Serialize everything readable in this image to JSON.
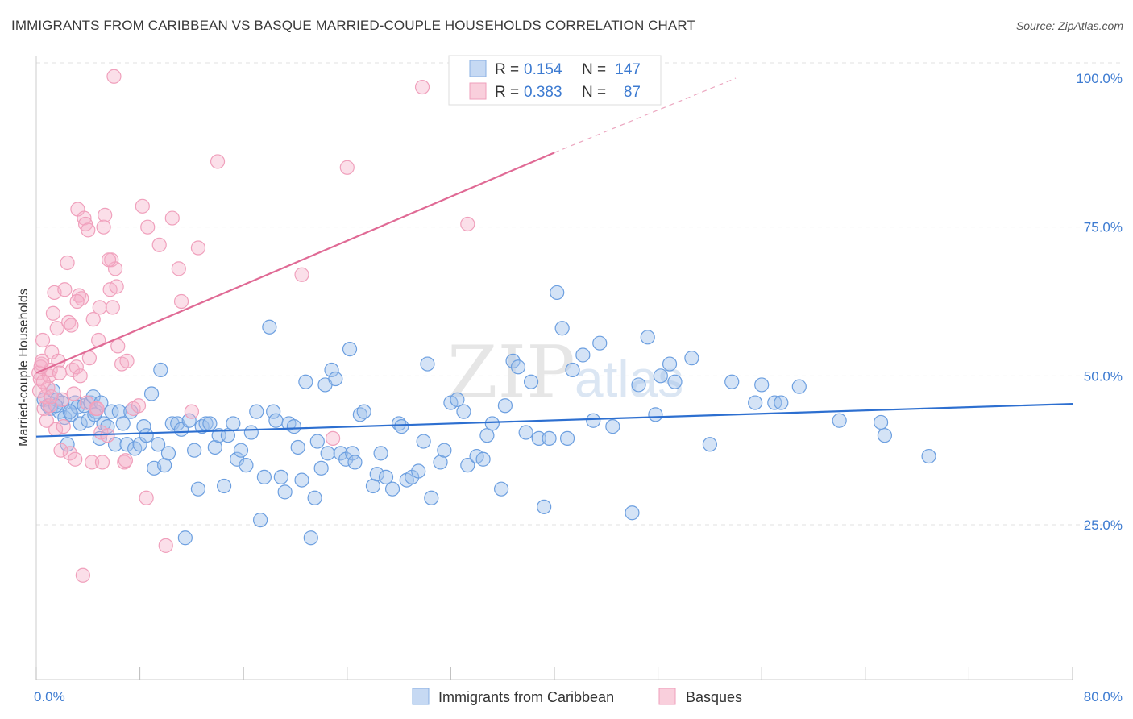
{
  "title": "IMMIGRANTS FROM CARIBBEAN VS BASQUE MARRIED-COUPLE HOUSEHOLDS CORRELATION CHART",
  "source": "Source: ZipAtlas.com",
  "watermark": {
    "zip": "ZIP",
    "atlas": "atlas"
  },
  "colors": {
    "blue": "#6c9fe0",
    "blue_line": "#2d6fd0",
    "pink": "#f0a0bc",
    "pink_line": "#e06a95",
    "accent_text": "#3d7bd1"
  },
  "legend": {
    "r_label": "R =",
    "n_label": "N =",
    "series": [
      {
        "name": "Immigrants from Caribbean",
        "r": "0.154",
        "n": "147"
      },
      {
        "name": "Basques",
        "r": "0.383",
        "n": "87"
      }
    ]
  },
  "chart_data": {
    "type": "scatter",
    "title": "IMMIGRANTS FROM CARIBBEAN VS BASQUE MARRIED-COUPLE HOUSEHOLDS CORRELATION CHART",
    "xlabel": "",
    "ylabel": "Married-couple Households",
    "xlim": [
      0,
      80
    ],
    "ylim": [
      0,
      105
    ],
    "x_tick_labels": [
      "0.0%",
      "80.0%"
    ],
    "y_tick_labels": [
      "25.0%",
      "50.0%",
      "75.0%",
      "100.0%"
    ],
    "y_ticks": [
      25,
      50,
      75,
      100
    ],
    "series": [
      {
        "name": "Immigrants from Caribbean",
        "color": "#6c9fe0",
        "trend": {
          "x0": 0,
          "y0": 39.8,
          "x1": 80,
          "y1": 45.3,
          "dashed_from": null
        },
        "points": [
          [
            0.6,
            46
          ],
          [
            0.9,
            45
          ],
          [
            1.1,
            44.5
          ],
          [
            1.3,
            47.5
          ],
          [
            1.6,
            46
          ],
          [
            1.8,
            44
          ],
          [
            2.0,
            45.5
          ],
          [
            2.2,
            43
          ],
          [
            2.4,
            38.5
          ],
          [
            2.7,
            43.5
          ],
          [
            3.0,
            45.5
          ],
          [
            3.2,
            44.8
          ],
          [
            3.4,
            42
          ],
          [
            3.7,
            45
          ],
          [
            4.0,
            42.5
          ],
          [
            4.2,
            45.5
          ],
          [
            4.4,
            46.5
          ],
          [
            4.6,
            44
          ],
          [
            4.9,
            39.5
          ],
          [
            5.2,
            42
          ],
          [
            5.5,
            41.5
          ],
          [
            5.8,
            44
          ],
          [
            6.1,
            38.5
          ],
          [
            6.4,
            44
          ],
          [
            6.7,
            42
          ],
          [
            7.0,
            38.5
          ],
          [
            7.3,
            44
          ],
          [
            7.6,
            37.8
          ],
          [
            8.0,
            38.5
          ],
          [
            8.3,
            41.5
          ],
          [
            8.5,
            40
          ],
          [
            8.9,
            47
          ],
          [
            9.1,
            34.5
          ],
          [
            9.4,
            38.5
          ],
          [
            9.6,
            51
          ],
          [
            9.9,
            35
          ],
          [
            10.2,
            37
          ],
          [
            10.5,
            42
          ],
          [
            10.9,
            42
          ],
          [
            11.2,
            41
          ],
          [
            11.5,
            22.8
          ],
          [
            11.8,
            42.5
          ],
          [
            12.2,
            37.5
          ],
          [
            12.5,
            31
          ],
          [
            12.8,
            41.5
          ],
          [
            13.1,
            42
          ],
          [
            13.4,
            42
          ],
          [
            13.8,
            38
          ],
          [
            14.1,
            40
          ],
          [
            14.5,
            31.5
          ],
          [
            14.8,
            40
          ],
          [
            15.2,
            42
          ],
          [
            15.5,
            36
          ],
          [
            15.8,
            37.5
          ],
          [
            16.2,
            35
          ],
          [
            16.6,
            40.5
          ],
          [
            17.0,
            44
          ],
          [
            17.3,
            25.8
          ],
          [
            17.6,
            33
          ],
          [
            18.0,
            58.2
          ],
          [
            18.3,
            44
          ],
          [
            18.5,
            42.5
          ],
          [
            18.9,
            33
          ],
          [
            19.2,
            30.5
          ],
          [
            19.5,
            42
          ],
          [
            19.9,
            41.5
          ],
          [
            20.2,
            38
          ],
          [
            20.5,
            32.5
          ],
          [
            20.8,
            49
          ],
          [
            21.2,
            22.8
          ],
          [
            21.5,
            29.5
          ],
          [
            21.7,
            39
          ],
          [
            22.0,
            34.5
          ],
          [
            22.3,
            48.5
          ],
          [
            22.5,
            37
          ],
          [
            22.8,
            51
          ],
          [
            23.1,
            49.5
          ],
          [
            23.5,
            37
          ],
          [
            23.9,
            36
          ],
          [
            24.2,
            54.5
          ],
          [
            24.4,
            37
          ],
          [
            24.6,
            35.5
          ],
          [
            25.0,
            43.5
          ],
          [
            25.3,
            44
          ],
          [
            26.0,
            31.5
          ],
          [
            26.3,
            33.5
          ],
          [
            26.6,
            37
          ],
          [
            27.0,
            33
          ],
          [
            27.5,
            31
          ],
          [
            28.0,
            42
          ],
          [
            28.2,
            41.5
          ],
          [
            28.6,
            32.5
          ],
          [
            29.0,
            33
          ],
          [
            29.5,
            34
          ],
          [
            29.9,
            39
          ],
          [
            30.2,
            52
          ],
          [
            30.5,
            29.5
          ],
          [
            31.2,
            35.5
          ],
          [
            31.5,
            37.5
          ],
          [
            32.0,
            45.5
          ],
          [
            32.5,
            46
          ],
          [
            33.0,
            44
          ],
          [
            33.3,
            35
          ],
          [
            34.0,
            36.5
          ],
          [
            34.5,
            36
          ],
          [
            34.8,
            40
          ],
          [
            35.2,
            42
          ],
          [
            35.9,
            31
          ],
          [
            36.2,
            45
          ],
          [
            36.8,
            52.5
          ],
          [
            37.2,
            51.5
          ],
          [
            37.8,
            40.5
          ],
          [
            38.2,
            49
          ],
          [
            38.8,
            39.5
          ],
          [
            39.2,
            28
          ],
          [
            39.6,
            39.5
          ],
          [
            40.2,
            64
          ],
          [
            40.6,
            58
          ],
          [
            41.0,
            39.5
          ],
          [
            41.4,
            51
          ],
          [
            42.2,
            53.5
          ],
          [
            43.0,
            42.5
          ],
          [
            43.5,
            55.5
          ],
          [
            44.5,
            41.5
          ],
          [
            46.0,
            27
          ],
          [
            46.5,
            48.5
          ],
          [
            47.2,
            56.5
          ],
          [
            47.8,
            43.5
          ],
          [
            48.2,
            50
          ],
          [
            48.9,
            52
          ],
          [
            49.3,
            49
          ],
          [
            50.6,
            53
          ],
          [
            52.0,
            38.5
          ],
          [
            53.7,
            49
          ],
          [
            55.5,
            45.5
          ],
          [
            56.0,
            48.5
          ],
          [
            57.0,
            45.5
          ],
          [
            57.5,
            45.5
          ],
          [
            58.9,
            48.2
          ],
          [
            62.0,
            42.5
          ],
          [
            65.2,
            42.2
          ],
          [
            65.5,
            40
          ],
          [
            68.9,
            36.5
          ],
          [
            1.5,
            45
          ],
          [
            2.6,
            44
          ],
          [
            5.0,
            45.5
          ],
          [
            4.5,
            43.5
          ]
        ]
      },
      {
        "name": "Basques",
        "color": "#f0a0bc",
        "trend": {
          "x0": 0,
          "y0": 50.5,
          "x1": 40,
          "y1": 87.5,
          "dashed_to_x": 54,
          "dashed_to_y": 100
        },
        "points": [
          [
            0.2,
            50.5
          ],
          [
            0.3,
            49.5
          ],
          [
            0.4,
            52
          ],
          [
            0.5,
            56
          ],
          [
            0.6,
            44.5
          ],
          [
            0.7,
            46.5
          ],
          [
            0.8,
            42.5
          ],
          [
            0.9,
            48
          ],
          [
            1.0,
            50
          ],
          [
            1.1,
            51
          ],
          [
            1.2,
            54
          ],
          [
            1.3,
            60.5
          ],
          [
            1.4,
            64
          ],
          [
            1.5,
            41
          ],
          [
            1.6,
            58
          ],
          [
            1.7,
            52.5
          ],
          [
            1.8,
            50.5
          ],
          [
            2.0,
            46
          ],
          [
            2.2,
            64.5
          ],
          [
            2.4,
            69
          ],
          [
            2.5,
            59
          ],
          [
            2.6,
            37
          ],
          [
            2.7,
            58.5
          ],
          [
            2.8,
            51
          ],
          [
            2.9,
            47
          ],
          [
            3.0,
            36
          ],
          [
            3.1,
            51.5
          ],
          [
            3.2,
            78
          ],
          [
            3.3,
            63.5
          ],
          [
            3.4,
            50
          ],
          [
            3.5,
            63
          ],
          [
            3.6,
            16.5
          ],
          [
            3.7,
            76.5
          ],
          [
            3.8,
            75.5
          ],
          [
            3.9,
            45.5
          ],
          [
            4.0,
            74.5
          ],
          [
            4.1,
            53
          ],
          [
            4.3,
            35.5
          ],
          [
            4.4,
            59.5
          ],
          [
            4.6,
            44.5
          ],
          [
            4.8,
            56
          ],
          [
            4.9,
            61.5
          ],
          [
            5.0,
            40.5
          ],
          [
            5.1,
            35.5
          ],
          [
            5.2,
            75
          ],
          [
            5.3,
            77
          ],
          [
            5.5,
            40
          ],
          [
            5.7,
            64.5
          ],
          [
            5.8,
            69.5
          ],
          [
            5.9,
            61.5
          ],
          [
            6.0,
            100.3
          ],
          [
            6.1,
            68
          ],
          [
            6.3,
            55
          ],
          [
            6.6,
            52
          ],
          [
            6.8,
            35.5
          ],
          [
            7.0,
            52.5
          ],
          [
            7.5,
            44.5
          ],
          [
            7.9,
            45
          ],
          [
            8.2,
            78.5
          ],
          [
            8.5,
            29.5
          ],
          [
            8.6,
            75
          ],
          [
            9.5,
            72
          ],
          [
            10.0,
            21.5
          ],
          [
            10.5,
            76.5
          ],
          [
            11.0,
            68
          ],
          [
            11.2,
            62.5
          ],
          [
            12.0,
            44
          ],
          [
            12.5,
            71.5
          ],
          [
            14.0,
            86
          ],
          [
            20.5,
            67
          ],
          [
            24.0,
            85
          ],
          [
            29.8,
            98.5
          ],
          [
            33.3,
            75.5
          ],
          [
            22.9,
            39.5
          ],
          [
            1.9,
            37.5
          ],
          [
            2.1,
            41.5
          ],
          [
            4.7,
            44.5
          ],
          [
            0.25,
            47.5
          ],
          [
            0.35,
            51.5
          ],
          [
            0.45,
            52.5
          ],
          [
            0.55,
            49
          ],
          [
            1.05,
            45
          ],
          [
            1.15,
            46.5
          ],
          [
            5.6,
            69.5
          ],
          [
            6.2,
            65
          ],
          [
            6.9,
            35.8
          ],
          [
            3.15,
            62.5
          ]
        ]
      }
    ]
  }
}
